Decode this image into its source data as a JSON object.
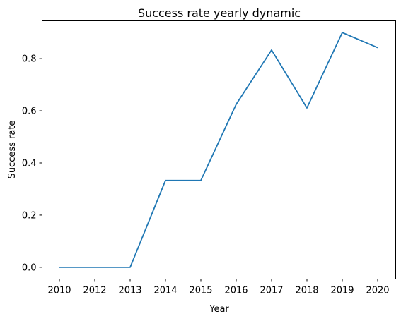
{
  "chart_data": {
    "type": "line",
    "title": "Success rate yearly dynamic",
    "xlabel": "Year",
    "ylabel": "Success rate",
    "categories": [
      "2010",
      "2012",
      "2013",
      "2014",
      "2015",
      "2016",
      "2017",
      "2018",
      "2019",
      "2020"
    ],
    "series": [
      {
        "values": [
          0.0,
          0.0,
          0.0,
          0.333,
          0.333,
          0.625,
          0.833,
          0.611,
          0.9,
          0.842
        ],
        "color": "#1f77b4"
      }
    ],
    "yticks": [
      "0.0",
      "0.2",
      "0.4",
      "0.6",
      "0.8"
    ],
    "ytick_values": [
      0.0,
      0.2,
      0.4,
      0.6,
      0.8
    ],
    "ylim": [
      -0.045,
      0.945
    ],
    "grid": false,
    "legend": "none"
  }
}
